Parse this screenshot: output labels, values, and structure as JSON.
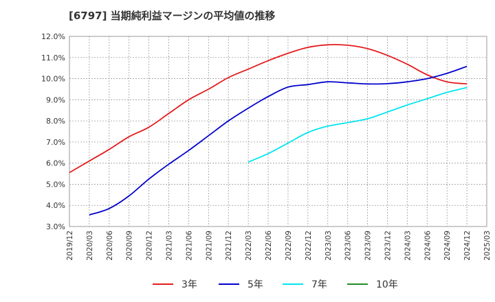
{
  "title": "[6797]  当期純利益マージンの平均値の推移",
  "chart_data": {
    "type": "line",
    "categories": [
      "2019/12",
      "2020/03",
      "2020/06",
      "2020/09",
      "2020/12",
      "2021/03",
      "2021/06",
      "2021/09",
      "2021/12",
      "2022/03",
      "2022/06",
      "2022/09",
      "2022/12",
      "2023/03",
      "2023/06",
      "2023/09",
      "2023/12",
      "2024/03",
      "2024/06",
      "2024/09",
      "2024/12",
      "2025/03"
    ],
    "ylim": [
      3.0,
      12.0
    ],
    "yticks": [
      "3.0%",
      "4.0%",
      "5.0%",
      "6.0%",
      "7.0%",
      "8.0%",
      "9.0%",
      "10.0%",
      "11.0%",
      "12.0%"
    ],
    "grid": true,
    "legend_position": "bottom",
    "series": [
      {
        "name": "3年",
        "color": "#e41a1c",
        "values": [
          5.55,
          6.1,
          6.65,
          7.25,
          7.7,
          8.35,
          9.0,
          9.5,
          10.05,
          10.45,
          10.85,
          11.2,
          11.48,
          11.6,
          11.58,
          11.42,
          11.1,
          10.68,
          10.18,
          9.85,
          9.75,
          null
        ]
      },
      {
        "name": "5年",
        "color": "#0000cc",
        "values": [
          null,
          3.55,
          3.85,
          4.45,
          5.25,
          5.95,
          6.6,
          7.3,
          8.0,
          8.6,
          9.15,
          9.6,
          9.72,
          9.85,
          9.8,
          9.75,
          9.76,
          9.85,
          10.0,
          10.25,
          10.58,
          null
        ]
      },
      {
        "name": "7年",
        "color": "#00e5ee",
        "values": [
          null,
          null,
          null,
          null,
          null,
          null,
          null,
          null,
          null,
          6.05,
          6.45,
          6.95,
          7.45,
          7.75,
          7.92,
          8.1,
          8.42,
          8.75,
          9.05,
          9.35,
          9.58,
          null
        ]
      },
      {
        "name": "10年",
        "color": "#228b22",
        "values": [
          null,
          null,
          null,
          null,
          null,
          null,
          null,
          null,
          null,
          null,
          null,
          null,
          null,
          null,
          null,
          null,
          null,
          null,
          null,
          null,
          null,
          null
        ]
      }
    ]
  }
}
